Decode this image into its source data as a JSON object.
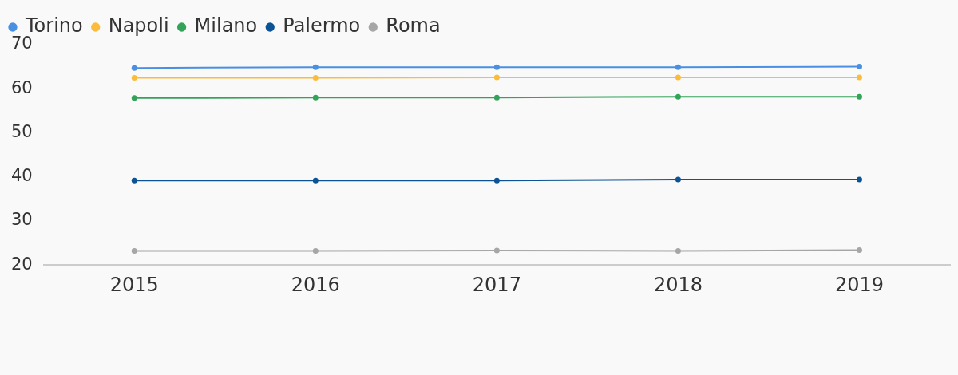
{
  "chart_data": {
    "type": "line",
    "categories": [
      "2015",
      "2016",
      "2017",
      "2018",
      "2019"
    ],
    "series": [
      {
        "name": "Torino",
        "color": "#4a90e2",
        "values": [
          64.7,
          64.9,
          64.9,
          64.9,
          65.0
        ]
      },
      {
        "name": "Napoli",
        "color": "#fbbc3c",
        "values": [
          62.5,
          62.5,
          62.6,
          62.6,
          62.6
        ]
      },
      {
        "name": "Milano",
        "color": "#34a35a",
        "values": [
          57.9,
          58.0,
          58.0,
          58.2,
          58.2
        ]
      },
      {
        "name": "Palermo",
        "color": "#0b5394",
        "values": [
          39.2,
          39.2,
          39.2,
          39.4,
          39.4
        ]
      },
      {
        "name": "Roma",
        "color": "#a6a6a6",
        "values": [
          23.2,
          23.2,
          23.3,
          23.2,
          23.4
        ]
      }
    ],
    "ylim": [
      20,
      70
    ],
    "yticks": [
      20,
      30,
      40,
      50,
      60,
      70
    ],
    "grid": false,
    "legend": "top left",
    "marker": "circle",
    "line_style": "solid"
  }
}
